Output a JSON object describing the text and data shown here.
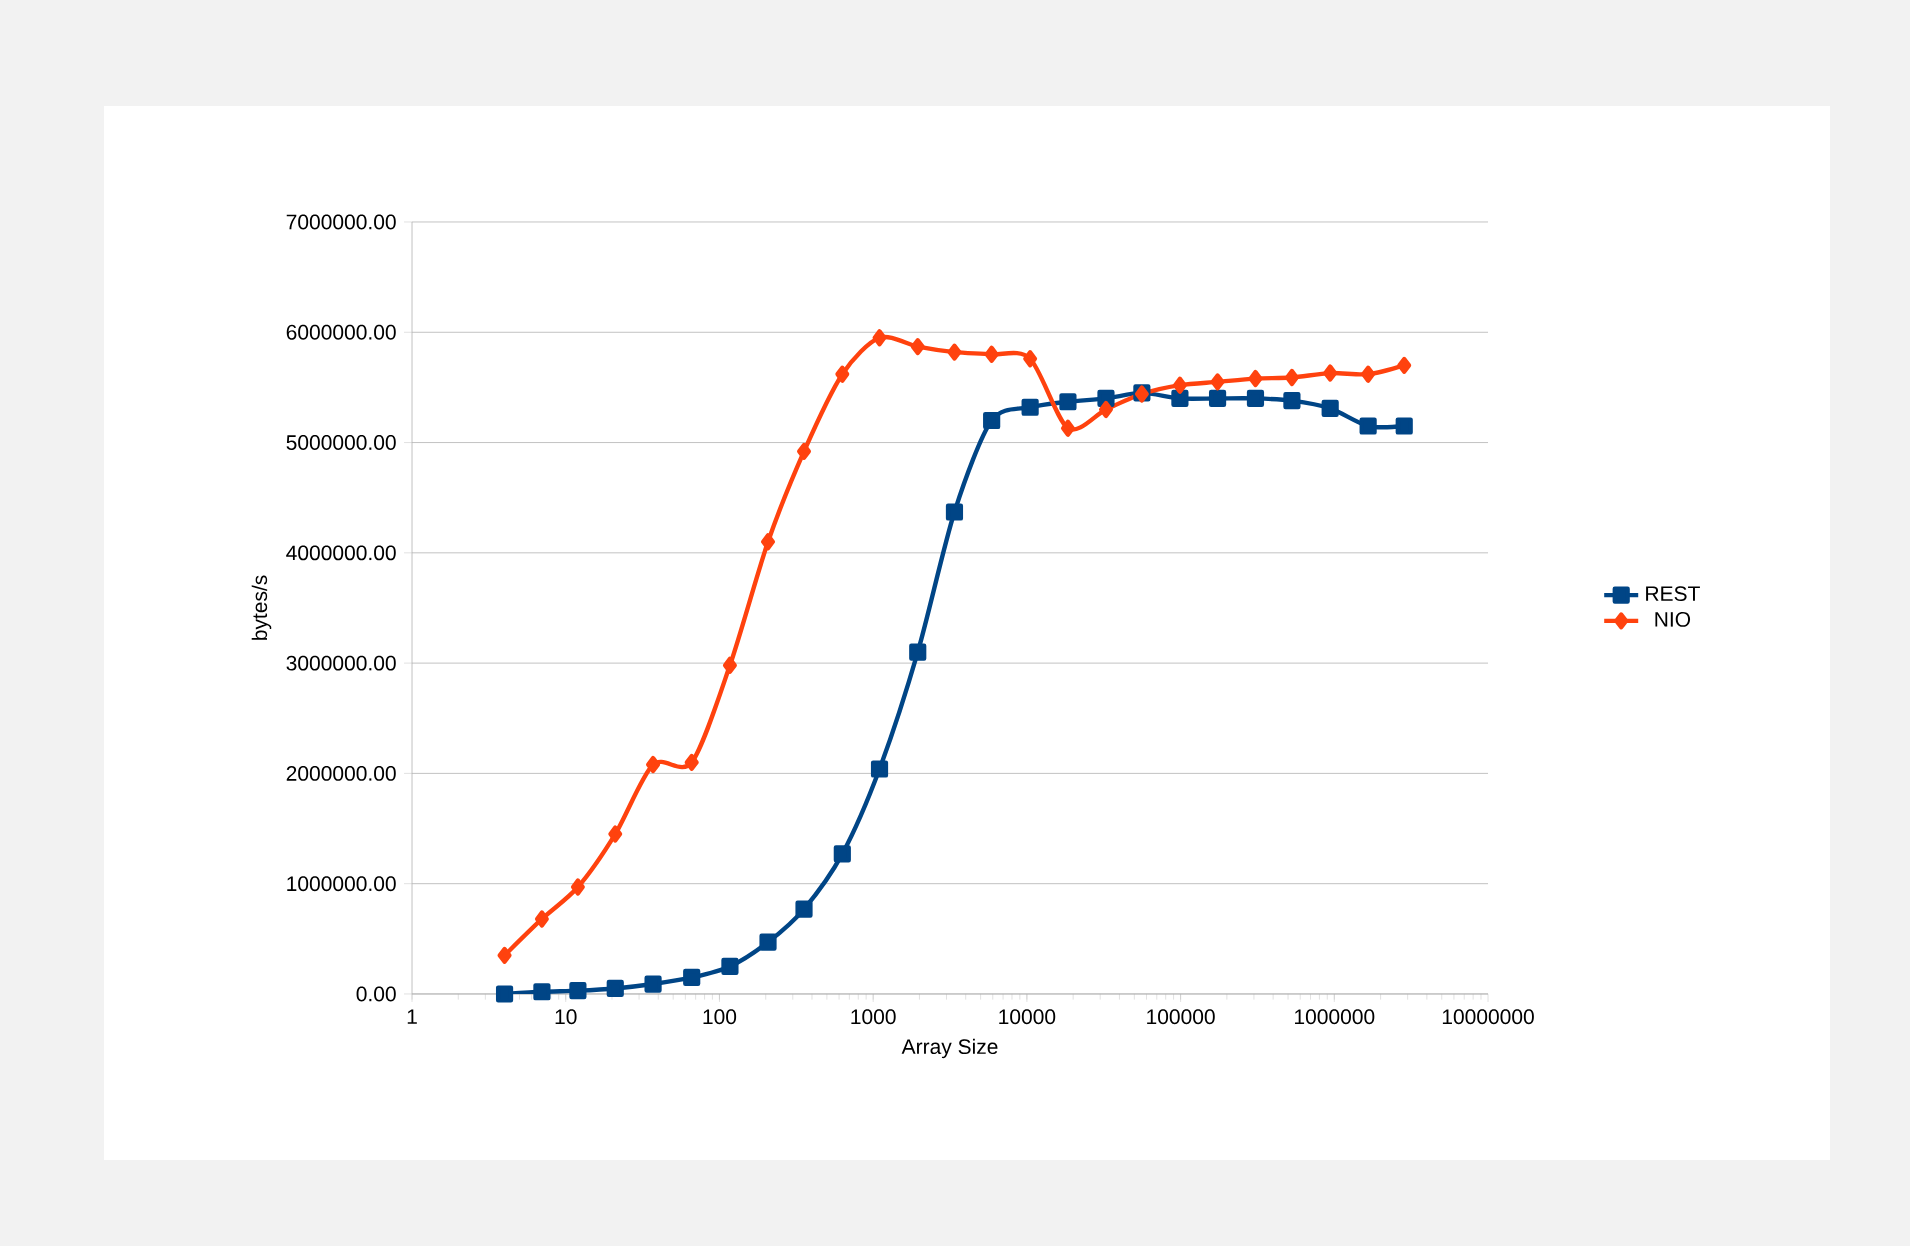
{
  "chart_data": {
    "type": "line",
    "xlabel": "Array Size",
    "ylabel": "bytes/s",
    "log": "x",
    "grid": "y",
    "legend": "right",
    "xlim": [
      1,
      10000000
    ],
    "xticks": [
      1,
      10,
      100,
      1000,
      10000,
      100000,
      1000000,
      10000000
    ],
    "ylim": [
      0,
      7000000
    ],
    "yticks": [
      {
        "value": 0,
        "label": "0.00"
      },
      {
        "value": 1000000,
        "label": "1000000.00"
      },
      {
        "value": 2000000,
        "label": "2000000.00"
      },
      {
        "value": 3000000,
        "label": "3000000.00"
      },
      {
        "value": 4000000,
        "label": "4000000.00"
      },
      {
        "value": 5000000,
        "label": "5000000.00"
      },
      {
        "value": 6000000,
        "label": "6000000.00"
      },
      {
        "value": 7000000,
        "label": "7000000.00"
      }
    ],
    "x": [
      4,
      7,
      12,
      21,
      37,
      66,
      117,
      207,
      355,
      630,
      1100,
      1950,
      3380,
      5900,
      10500,
      18500,
      32700,
      56000,
      99000,
      174000,
      307000,
      530000,
      940000,
      1660000,
      2850000
    ],
    "series": [
      {
        "name": "REST",
        "color": "#004586",
        "marker": "square",
        "values": [
          0,
          20000,
          30000,
          50000,
          90000,
          150000,
          250000,
          470000,
          770000,
          1270000,
          2040000,
          3100000,
          4370000,
          5200000,
          5320000,
          5370000,
          5400000,
          5450000,
          5400000,
          5400000,
          5400000,
          5380000,
          5310000,
          5150000,
          5150000
        ]
      },
      {
        "name": "NIO",
        "color": "#ff420e",
        "marker": "diamond",
        "values": [
          350000,
          680000,
          970000,
          1450000,
          2080000,
          2100000,
          2980000,
          4100000,
          4920000,
          5620000,
          5950000,
          5870000,
          5820000,
          5800000,
          5760000,
          5130000,
          5300000,
          5440000,
          5520000,
          5550000,
          5580000,
          5590000,
          5630000,
          5620000,
          5700000
        ]
      }
    ]
  }
}
